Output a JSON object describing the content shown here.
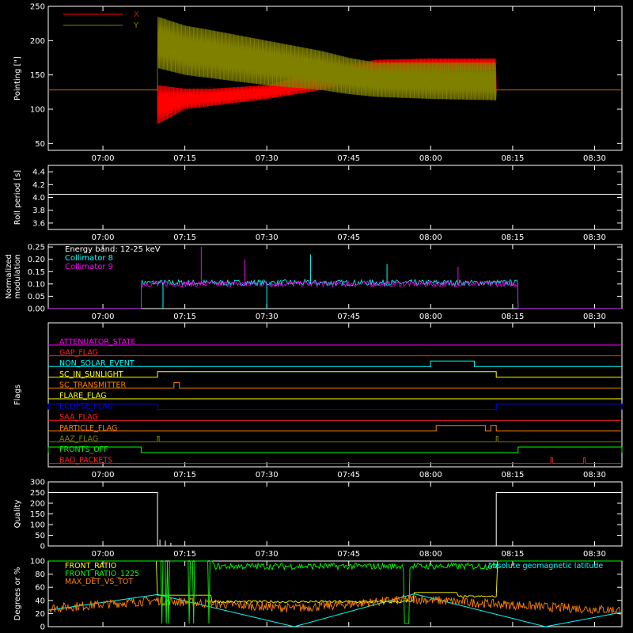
{
  "figure": {
    "background": "#000000",
    "foreground": "#ffffff"
  },
  "time_ticks": [
    "07:00",
    "07:15",
    "07:30",
    "07:45",
    "08:00",
    "08:15",
    "08:30"
  ],
  "chart_data": [
    {
      "id": "pointing",
      "type": "line",
      "ylabel": "Pointing [\"]",
      "xlim": [
        "06:50",
        "08:35"
      ],
      "ylim": [
        40,
        250
      ],
      "yticks": [
        "50",
        "100",
        "150",
        "200",
        "250"
      ],
      "legend_position": "top-left",
      "series": [
        {
          "name": "X",
          "color": "#ff0000",
          "flat_value": 128,
          "data_start": "07:10",
          "data_end": "08:12",
          "envelope_time": [
            "07:10",
            "07:15",
            "07:20",
            "07:30",
            "07:40",
            "07:45",
            "07:50",
            "08:00",
            "08:12"
          ],
          "envelope_low": [
            78,
            100,
            105,
            115,
            128,
            138,
            150,
            155,
            158
          ],
          "envelope_high": [
            135,
            130,
            130,
            135,
            155,
            165,
            172,
            174,
            174
          ]
        },
        {
          "name": "Y",
          "color": "#808000",
          "flat_value": 128,
          "data_start": "07:10",
          "data_end": "08:12",
          "envelope_time": [
            "07:10",
            "07:15",
            "07:20",
            "07:30",
            "07:40",
            "07:45",
            "07:50",
            "08:00",
            "08:12"
          ],
          "envelope_low": [
            160,
            150,
            145,
            135,
            128,
            122,
            118,
            115,
            113
          ],
          "envelope_high": [
            235,
            222,
            215,
            200,
            185,
            175,
            168,
            168,
            168
          ]
        }
      ]
    },
    {
      "id": "roll",
      "type": "line",
      "ylabel": "Roll period [s]",
      "ylim": [
        3.5,
        4.5
      ],
      "yticks": [
        "3.6",
        "3.8",
        "4.0",
        "4.2",
        "4.4"
      ],
      "series": [
        {
          "color": "#ffffff",
          "x": [
            "06:50",
            "08:35"
          ],
          "y": [
            4.05,
            4.05
          ]
        }
      ]
    },
    {
      "id": "modulation",
      "type": "line",
      "ylabel": "Normalized modulation",
      "ylim": [
        0,
        0.26
      ],
      "yticks": [
        "0.00",
        "0.05",
        "0.10",
        "0.15",
        "0.20",
        "0.25"
      ],
      "annotations": [
        "Energy band: 12-25 keV"
      ],
      "series": [
        {
          "name": "Collimator 8",
          "color": "#00ffff",
          "data_start": "07:07",
          "data_end": "08:16",
          "mean": 0.105,
          "spread": 0.012
        },
        {
          "name": "Collimator 9",
          "color": "#ff00ff",
          "data_start": "07:07",
          "data_end": "08:16",
          "mean": 0.1,
          "spread": 0.012
        }
      ],
      "spikes": [
        {
          "color": "#ff00ff",
          "time": "07:18",
          "value": 0.25
        },
        {
          "color": "#ff00ff",
          "time": "07:26",
          "value": 0.2
        },
        {
          "color": "#00ffff",
          "time": "07:38",
          "value": 0.22
        },
        {
          "color": "#00ffff",
          "time": "07:52",
          "value": 0.18
        },
        {
          "color": "#ff00ff",
          "time": "08:05",
          "value": 0.17
        },
        {
          "color": "#00ffff",
          "time": "07:11",
          "value": 0.0
        },
        {
          "color": "#00ffff",
          "time": "07:30",
          "value": 0.0
        }
      ]
    },
    {
      "id": "flags",
      "type": "line",
      "ylabel": "Flags",
      "rows": [
        {
          "name": "ATTENUATOR_STATE",
          "color": "#ff00ff",
          "high": []
        },
        {
          "name": "GAP_FLAG",
          "color": "#ff2020",
          "high": []
        },
        {
          "name": "NON_SOLAR_EVENT",
          "color": "#00ffff",
          "high": [
            [
              "08:00",
              "08:08"
            ]
          ]
        },
        {
          "name": "SC_IN_SUNLIGHT",
          "color": "#ffff00",
          "high": [
            [
              "07:10",
              "08:12"
            ]
          ]
        },
        {
          "name": "SC_TRANSMITTER",
          "color": "#ff8000",
          "high": [
            [
              "07:13",
              "07:14"
            ]
          ]
        },
        {
          "name": "FLARE_FLAG",
          "color": "#ffff00",
          "high": []
        },
        {
          "name": "ECLIPSE_FLAG",
          "color": "#0000ff",
          "high": [
            [
              "06:50",
              "07:10"
            ],
            [
              "08:12",
              "08:35"
            ]
          ]
        },
        {
          "name": "SAA_FLAG",
          "color": "#ff2020",
          "high": []
        },
        {
          "name": "PARTICLE_FLAG",
          "color": "#ff8000",
          "high": [
            [
              "08:01",
              "08:10"
            ],
            [
              "08:11",
              "08:12"
            ]
          ]
        },
        {
          "name": "AAZ_FLAG",
          "color": "#808000",
          "high": [
            [
              "07:10",
              "07:10"
            ],
            [
              "08:12",
              "08:12"
            ]
          ]
        },
        {
          "name": "FRONTS_OFF",
          "color": "#00ff00",
          "high": [
            [
              "06:50",
              "07:07"
            ],
            [
              "08:16",
              "08:35"
            ]
          ]
        },
        {
          "name": "BAD_PACKETS",
          "color": "#ff2020",
          "high": [
            [
              "08:22",
              "08:22"
            ],
            [
              "08:28",
              "08:28"
            ]
          ]
        }
      ]
    },
    {
      "id": "quality",
      "type": "line",
      "ylabel": "Quality",
      "ylim": [
        0,
        300
      ],
      "yticks": [
        "0",
        "50",
        "100",
        "150",
        "200",
        "250",
        "300"
      ],
      "series": [
        {
          "color": "#ffffff",
          "x": [
            "06:50",
            "07:10",
            "07:10",
            "08:12",
            "08:12",
            "08:35"
          ],
          "y": [
            250,
            250,
            0,
            0,
            250,
            250
          ],
          "blips": [
            [
              "07:10",
              30
            ],
            [
              "07:11",
              25
            ],
            [
              "07:12",
              15
            ]
          ]
        }
      ]
    },
    {
      "id": "latitude",
      "type": "line",
      "ylabel": "Degrees or %",
      "ylim": [
        0,
        100
      ],
      "yticks": [
        "0",
        "20",
        "40",
        "60",
        "80",
        "100"
      ],
      "legend_position": "top-left",
      "series": [
        {
          "name": "FRONT_RATIO",
          "color": "#ffff00"
        },
        {
          "name": "FRONT_RATIO_1225",
          "color": "#00ff00"
        },
        {
          "name": "MAX_DET_VS_TOT",
          "color": "#ff8000"
        },
        {
          "name": "Absolute geomagnetic latitude",
          "color": "#00ffff",
          "x": [
            "06:50",
            "07:10",
            "07:35",
            "07:57",
            "08:21",
            "08:35"
          ],
          "y": [
            25,
            49,
            0,
            50,
            0,
            22
          ]
        }
      ]
    }
  ]
}
